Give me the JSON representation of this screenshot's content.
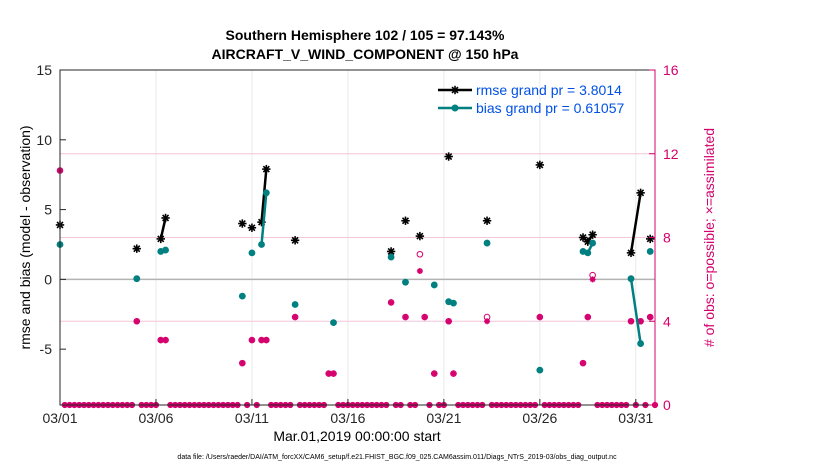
{
  "chart_data": {
    "type": "line",
    "title_line1": "Southern Hemisphere 102 / 105 = 97.143%",
    "title_line2": "AIRCRAFT_V_WIND_COMPONENT @ 150 hPa",
    "xlabel": "Mar.01,2019 00:00:00 start",
    "ylabel": "rmse and bias (model - observation)",
    "y2label": "# of obs: o=possible; ×=assimilated",
    "footnote": "data file: /Users/raeder/DAI/ATM_forcXX/CAM6_setup/f.e21.FHIST_BGC.f09_025.CAM6assim.011/Diags_NTrS_2019-03/obs_diag_output.nc",
    "xlim": [
      0,
      31
    ],
    "ylim": [
      -9,
      15
    ],
    "y2lim": [
      0,
      16
    ],
    "x_ticks": [
      0,
      5,
      10,
      15,
      20,
      25,
      30
    ],
    "x_tick_labels": [
      "03/01",
      "03/06",
      "03/11",
      "03/16",
      "03/21",
      "03/26",
      "03/31"
    ],
    "y_ticks": [
      -5,
      0,
      5,
      10,
      15
    ],
    "y_tick_labels": [
      "-5",
      "0",
      "5",
      "10",
      "15"
    ],
    "y2_ticks": [
      0,
      4,
      8,
      12,
      16
    ],
    "y2_tick_labels": [
      "0",
      "4",
      "8",
      "12",
      "16"
    ],
    "colors": {
      "rmse": "#000000",
      "bias": "#008080",
      "obs": "#d5006d",
      "zero_line": "#b3b3b3",
      "legend_text": "#0050e6"
    },
    "legend": {
      "position": "top-right",
      "rmse_label": "rmse grand pr = 3.8014",
      "bias_label": "bias grand pr = 0.61057"
    },
    "series": [
      {
        "name": "rmse",
        "segments": [
          [
            [
              0,
              3.9
            ]
          ],
          [
            [
              4,
              2.2
            ]
          ],
          [
            [
              5.25,
              2.9
            ],
            [
              5.5,
              4.4
            ]
          ],
          [
            [
              9.5,
              4.0
            ]
          ],
          [
            [
              10,
              3.7
            ]
          ],
          [
            [
              10.5,
              4.1
            ],
            [
              10.75,
              7.9
            ]
          ],
          [
            [
              12.25,
              2.8
            ]
          ],
          [
            [
              17.25,
              2.0
            ]
          ],
          [
            [
              18,
              4.2
            ]
          ],
          [
            [
              18.75,
              3.1
            ]
          ],
          [
            [
              20.25,
              8.8
            ]
          ],
          [
            [
              22.25,
              4.2
            ]
          ],
          [
            [
              25,
              8.2
            ]
          ],
          [
            [
              27.25,
              3.0
            ],
            [
              27.5,
              2.7
            ],
            [
              27.75,
              3.2
            ]
          ],
          [
            [
              29.75,
              1.9
            ],
            [
              30.25,
              6.2
            ]
          ],
          [
            [
              30.75,
              2.9
            ]
          ]
        ]
      },
      {
        "name": "bias",
        "segments": [
          [
            [
              0,
              2.5
            ]
          ],
          [
            [
              4,
              0.05
            ]
          ],
          [
            [
              5.25,
              2.0
            ],
            [
              5.5,
              2.1
            ]
          ],
          [
            [
              9.5,
              -1.2
            ]
          ],
          [
            [
              10,
              1.9
            ]
          ],
          [
            [
              10.5,
              2.5
            ],
            [
              10.75,
              6.2
            ]
          ],
          [
            [
              12.25,
              -1.8
            ]
          ],
          [
            [
              14.25,
              -3.1
            ]
          ],
          [
            [
              17.25,
              1.6
            ]
          ],
          [
            [
              18,
              -0.2
            ]
          ],
          [
            [
              19.5,
              -0.4
            ]
          ],
          [
            [
              20.25,
              -1.6
            ],
            [
              20.5,
              -1.7
            ]
          ],
          [
            [
              22.25,
              2.6
            ]
          ],
          [
            [
              25,
              -6.5
            ]
          ],
          [
            [
              27.25,
              2.0
            ],
            [
              27.5,
              1.9
            ],
            [
              27.75,
              2.6
            ]
          ],
          [
            [
              29.75,
              0.05
            ],
            [
              30.25,
              -4.6
            ]
          ],
          [
            [
              30.75,
              2.0
            ]
          ]
        ]
      }
    ],
    "obs_possible": [
      [
        0,
        11.2
      ],
      [
        4,
        4
      ],
      [
        5.25,
        3.1
      ],
      [
        5.5,
        3.1
      ],
      [
        9.5,
        2
      ],
      [
        10,
        3.1
      ],
      [
        10.5,
        3.1
      ],
      [
        10.75,
        3.1
      ],
      [
        12.25,
        4.2
      ],
      [
        14,
        1.5
      ],
      [
        14.25,
        1.5
      ],
      [
        17.25,
        4.9
      ],
      [
        18,
        4.2
      ],
      [
        18.75,
        7.2
      ],
      [
        19,
        4.2
      ],
      [
        19.5,
        1.5
      ],
      [
        20.25,
        4
      ],
      [
        20.5,
        1.5
      ],
      [
        22.25,
        4.2
      ],
      [
        25,
        4.2
      ],
      [
        27.25,
        2
      ],
      [
        27.5,
        4.2
      ],
      [
        27.75,
        6.2
      ],
      [
        29.75,
        4
      ],
      [
        30.25,
        4
      ],
      [
        30.75,
        4.2
      ]
    ],
    "obs_assimilated": [
      [
        0,
        11.2
      ],
      [
        4,
        4
      ],
      [
        5.25,
        3.1
      ],
      [
        5.5,
        3.1
      ],
      [
        9.5,
        2
      ],
      [
        10,
        3.1
      ],
      [
        10.5,
        3.1
      ],
      [
        10.75,
        3.1
      ],
      [
        12.25,
        4.2
      ],
      [
        14,
        1.5
      ],
      [
        14.25,
        1.5
      ],
      [
        17.25,
        4.9
      ],
      [
        18,
        4.2
      ],
      [
        18.75,
        6.4
      ],
      [
        19,
        4.2
      ],
      [
        19.5,
        1.5
      ],
      [
        20.25,
        4
      ],
      [
        20.5,
        1.5
      ],
      [
        22.25,
        4
      ],
      [
        25,
        4.2
      ],
      [
        27.25,
        2
      ],
      [
        27.5,
        4.2
      ],
      [
        27.75,
        6
      ],
      [
        29.75,
        4
      ],
      [
        30.25,
        4
      ],
      [
        30.75,
        4.2
      ]
    ],
    "obs_zero_days": [
      0.25,
      0.5,
      0.75,
      1,
      1.25,
      1.5,
      1.75,
      2,
      2.25,
      2.5,
      2.75,
      3,
      3.25,
      3.5,
      3.75,
      4.25,
      4.5,
      4.75,
      5,
      5.75,
      6,
      6.25,
      6.5,
      6.75,
      7,
      7.25,
      7.5,
      7.75,
      8,
      8.25,
      8.5,
      8.75,
      9,
      9.25,
      9.75,
      10.25,
      11,
      11.25,
      11.5,
      11.75,
      12,
      12.5,
      12.75,
      13,
      13.25,
      13.5,
      13.75,
      14.5,
      14.75,
      15,
      15.25,
      15.5,
      15.75,
      16,
      16.25,
      16.5,
      16.75,
      17,
      17.5,
      17.75,
      18.25,
      18.5,
      19.25,
      19.75,
      20,
      20.75,
      21,
      21.25,
      21.5,
      21.75,
      22,
      22.5,
      22.75,
      23,
      23.25,
      23.5,
      23.75,
      24,
      24.25,
      24.5,
      24.75,
      25.25,
      25.5,
      25.75,
      26,
      26.25,
      26.5,
      26.75,
      27,
      28,
      28.25,
      28.5,
      28.75,
      29,
      29.25,
      29.5,
      30,
      30.5,
      31
    ]
  }
}
